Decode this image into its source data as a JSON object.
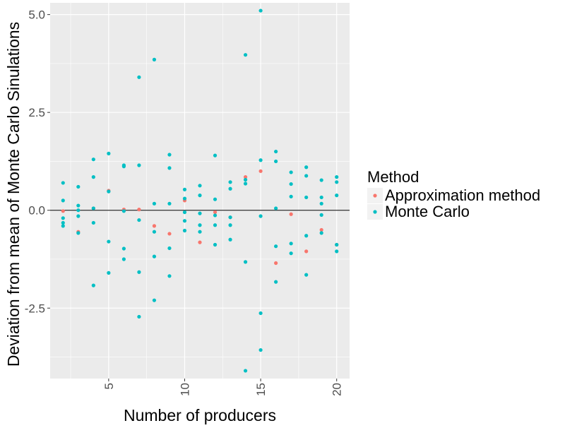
{
  "chart_data": {
    "type": "scatter",
    "title": "",
    "xlabel": "Number of producers",
    "ylabel": "Deviation from mean of Monte Carlo Sinulations",
    "xlim": [
      1.15,
      20.85
    ],
    "ylim": [
      -4.3,
      5.3
    ],
    "x_ticks": [
      5,
      10,
      15,
      20
    ],
    "x_tick_labels": [
      "5",
      "10",
      "15",
      "20"
    ],
    "y_ticks": [
      -2.5,
      0.0,
      2.5,
      5.0
    ],
    "y_tick_labels": [
      "-2.5",
      "0.0",
      "2.5",
      "5.0"
    ],
    "grid": true,
    "hline": 0,
    "legend": {
      "title": "Method",
      "position": "right"
    },
    "colors": {
      "approximation": "#f8766d",
      "monte_carlo": "#00bfc4",
      "panel": "#ebebeb",
      "grid": "#ffffff",
      "hline": "#000000"
    },
    "series": [
      {
        "name": "Approximation method",
        "color": "#f8766d",
        "points": [
          [
            2,
            -0.02
          ],
          [
            3,
            -0.55
          ],
          [
            4,
            0.05
          ],
          [
            5,
            0.5
          ],
          [
            6,
            0.02
          ],
          [
            7,
            0.02
          ],
          [
            8,
            -0.4
          ],
          [
            9,
            -0.6
          ],
          [
            10,
            0.25
          ],
          [
            11,
            -0.82
          ],
          [
            12,
            -0.05
          ],
          [
            13,
            -0.18
          ],
          [
            14,
            0.85
          ],
          [
            15,
            1.0
          ],
          [
            16,
            -1.35
          ],
          [
            17,
            -0.1
          ],
          [
            18,
            -1.05
          ],
          [
            19,
            -0.5
          ],
          [
            20,
            -0.88
          ]
        ]
      },
      {
        "name": "Monte Carlo",
        "color": "#00bfc4",
        "points": [
          [
            2,
            0.7
          ],
          [
            2,
            0.25
          ],
          [
            2,
            -0.2
          ],
          [
            2,
            -0.32
          ],
          [
            2,
            -0.4
          ],
          [
            3,
            0.6
          ],
          [
            3,
            0.12
          ],
          [
            3,
            0.0
          ],
          [
            3,
            -0.15
          ],
          [
            3,
            -0.58
          ],
          [
            4,
            1.3
          ],
          [
            4,
            0.85
          ],
          [
            4,
            0.05
          ],
          [
            4,
            -0.32
          ],
          [
            4,
            -1.92
          ],
          [
            5,
            1.45
          ],
          [
            5,
            0.48
          ],
          [
            5,
            -0.8
          ],
          [
            5,
            -1.6
          ],
          [
            6,
            1.15
          ],
          [
            6,
            1.12
          ],
          [
            6,
            -0.02
          ],
          [
            6,
            -0.98
          ],
          [
            6,
            -1.25
          ],
          [
            7,
            3.4
          ],
          [
            7,
            1.15
          ],
          [
            7,
            -0.25
          ],
          [
            7,
            -1.58
          ],
          [
            7,
            -2.72
          ],
          [
            8,
            3.85
          ],
          [
            8,
            0.17
          ],
          [
            8,
            -0.55
          ],
          [
            8,
            -1.18
          ],
          [
            8,
            -2.3
          ],
          [
            9,
            1.42
          ],
          [
            9,
            1.08
          ],
          [
            9,
            0.17
          ],
          [
            9,
            -0.97
          ],
          [
            9,
            -1.68
          ],
          [
            10,
            0.53
          ],
          [
            10,
            0.3
          ],
          [
            10,
            -0.05
          ],
          [
            10,
            -0.27
          ],
          [
            10,
            -0.52
          ],
          [
            11,
            0.63
          ],
          [
            11,
            0.38
          ],
          [
            11,
            -0.08
          ],
          [
            11,
            -0.38
          ],
          [
            11,
            -0.55
          ],
          [
            12,
            1.4
          ],
          [
            12,
            0.28
          ],
          [
            12,
            -0.13
          ],
          [
            12,
            -0.38
          ],
          [
            12,
            -0.88
          ],
          [
            13,
            0.72
          ],
          [
            13,
            0.55
          ],
          [
            13,
            -0.18
          ],
          [
            13,
            -0.38
          ],
          [
            13,
            -0.75
          ],
          [
            14,
            3.97
          ],
          [
            14,
            0.78
          ],
          [
            14,
            0.68
          ],
          [
            14,
            -1.32
          ],
          [
            14,
            -4.1
          ],
          [
            15,
            5.1
          ],
          [
            15,
            1.28
          ],
          [
            15,
            -0.15
          ],
          [
            15,
            -2.63
          ],
          [
            15,
            -3.57
          ],
          [
            16,
            1.5
          ],
          [
            16,
            1.25
          ],
          [
            16,
            0.05
          ],
          [
            16,
            -0.92
          ],
          [
            16,
            -1.83
          ],
          [
            17,
            0.97
          ],
          [
            17,
            0.67
          ],
          [
            17,
            0.35
          ],
          [
            17,
            -0.85
          ],
          [
            17,
            -1.1
          ],
          [
            18,
            1.1
          ],
          [
            18,
            0.88
          ],
          [
            18,
            0.33
          ],
          [
            18,
            -0.65
          ],
          [
            18,
            -1.65
          ],
          [
            19,
            0.77
          ],
          [
            19,
            0.33
          ],
          [
            19,
            0.17
          ],
          [
            19,
            -0.12
          ],
          [
            19,
            -0.58
          ],
          [
            20,
            0.85
          ],
          [
            20,
            0.72
          ],
          [
            20,
            0.38
          ],
          [
            20,
            -0.88
          ],
          [
            20,
            -1.05
          ]
        ]
      }
    ]
  }
}
